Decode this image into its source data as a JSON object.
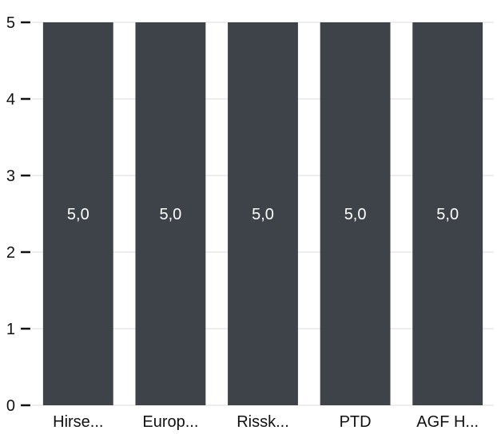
{
  "chart_data": {
    "type": "bar",
    "categories": [
      "Hirse...",
      "Europ...",
      "Rissk...",
      "PTD",
      "AGF H..."
    ],
    "values": [
      5.0,
      5.0,
      5.0,
      5.0,
      5.0
    ],
    "data_labels": [
      "5,0",
      "5,0",
      "5,0",
      "5,0",
      "5,0"
    ],
    "yticks": [
      0,
      1,
      2,
      3,
      4,
      5
    ],
    "ylim": [
      0,
      5
    ],
    "grid": true,
    "legend": "none",
    "bar_color": "#3e434a",
    "label_color": "#ffffff"
  }
}
